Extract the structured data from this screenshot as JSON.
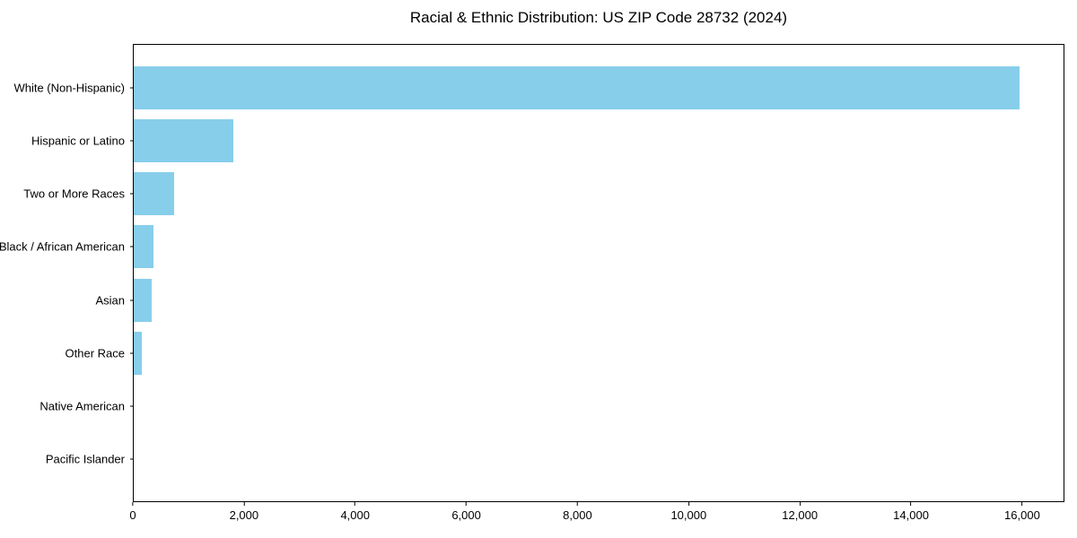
{
  "chart_data": {
    "type": "bar",
    "orientation": "horizontal",
    "title": "Racial & Ethnic Distribution: US ZIP Code 28732 (2024)",
    "categories": [
      "White (Non-Hispanic)",
      "Hispanic or Latino",
      "Two or More Races",
      "Black / African American",
      "Asian",
      "Other Race",
      "Native American",
      "Pacific Islander"
    ],
    "values": [
      15960,
      1790,
      720,
      350,
      330,
      140,
      0,
      0
    ],
    "xlabel": "",
    "ylabel": "",
    "xlim": [
      0,
      16760
    ],
    "xticks": [
      0,
      2000,
      4000,
      6000,
      8000,
      10000,
      12000,
      14000,
      16000
    ],
    "xtick_labels": [
      "0",
      "2,000",
      "4,000",
      "6,000",
      "8,000",
      "10,000",
      "12,000",
      "14,000",
      "16,000"
    ],
    "bar_color": "#87CEEB",
    "grid": false,
    "legend_position": "none"
  }
}
